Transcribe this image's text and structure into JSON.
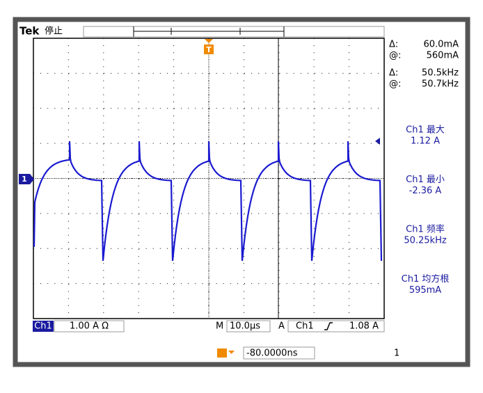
{
  "header": {
    "brand": "Tek",
    "status": "停止"
  },
  "trigger_marker": "T",
  "channel_marker": "1",
  "cursors": [
    {
      "symbol": "Δ:",
      "value": "60.0mA"
    },
    {
      "symbol": "@:",
      "value": "560mA"
    },
    {
      "symbol": "Δ:",
      "value": "50.5kHz"
    },
    {
      "symbol": "@:",
      "value": "50.7kHz"
    }
  ],
  "measurements": [
    {
      "label": "Ch1 最大",
      "value": "1.12 A"
    },
    {
      "label": "Ch1 最小",
      "value": "-2.36 A"
    },
    {
      "label": "Ch1 频率",
      "value": "50.25kHz"
    },
    {
      "label": "Ch1 均方根",
      "value": "595mA"
    }
  ],
  "status_bar": {
    "channel": "Ch1",
    "scale": "1.00 A Ω",
    "time_prefix": "M",
    "timebase": "10.0µs",
    "trigger_mode": "A",
    "trigger_source": "Ch1",
    "trigger_level": "1.08 A"
  },
  "footer": {
    "position": "-80.0000ns",
    "page": "1"
  }
}
